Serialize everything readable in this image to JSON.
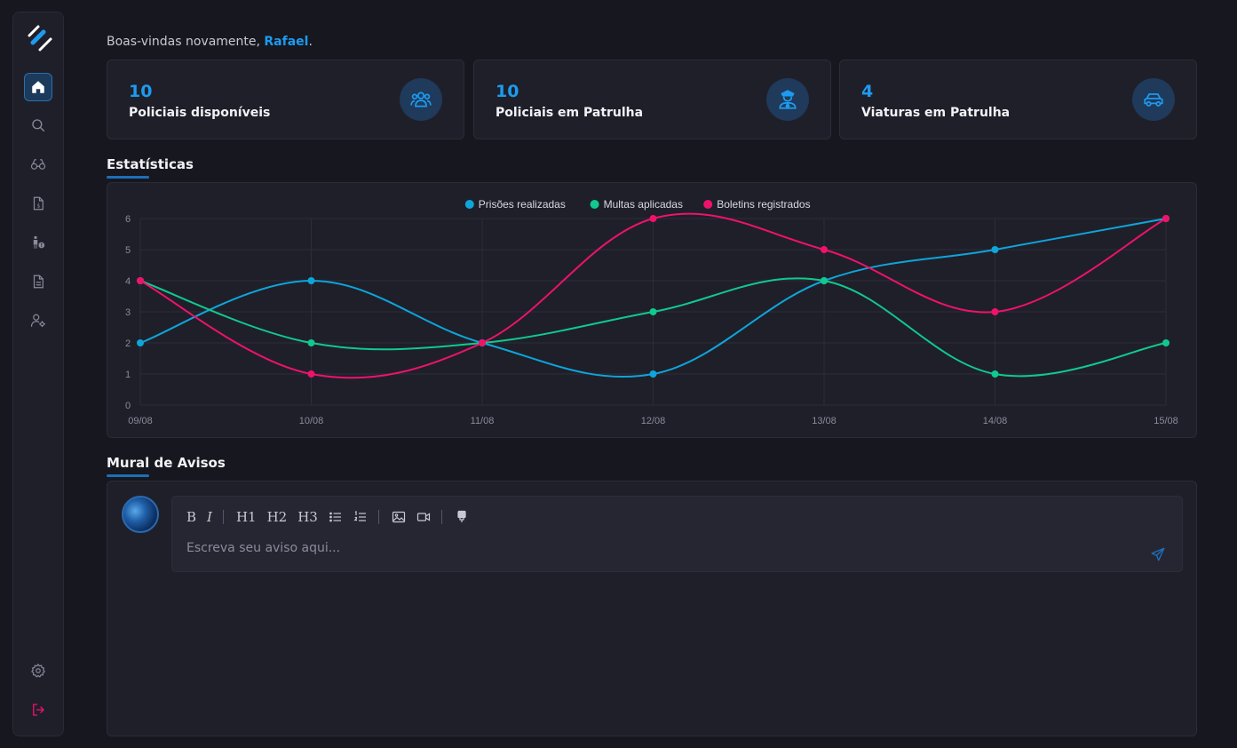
{
  "welcome": {
    "prefix": "Boas-vindas novamente, ",
    "name": "Rafael",
    "suffix": "."
  },
  "cards": [
    {
      "value": "10",
      "label": "Policiais disponíveis",
      "icon": "users-icon"
    },
    {
      "value": "10",
      "label": "Policiais em Patrulha",
      "icon": "police-officer-icon"
    },
    {
      "value": "4",
      "label": "Viaturas em Patrulha",
      "icon": "car-icon"
    }
  ],
  "sidebar": {
    "items": [
      {
        "name": "home",
        "icon": "home-icon",
        "active": true
      },
      {
        "name": "search",
        "icon": "search-icon"
      },
      {
        "name": "binoculars",
        "icon": "binoculars-icon"
      },
      {
        "name": "fines",
        "icon": "money-document-icon"
      },
      {
        "name": "wanted",
        "icon": "person-alert-icon"
      },
      {
        "name": "reports",
        "icon": "document-icon"
      },
      {
        "name": "user-settings",
        "icon": "user-gear-icon"
      }
    ],
    "bottom": [
      {
        "name": "settings",
        "icon": "gear-icon"
      },
      {
        "name": "logout",
        "icon": "logout-icon"
      }
    ]
  },
  "sections": {
    "stats_title": "Estatísticas",
    "mural_title": "Mural de Avisos"
  },
  "editor": {
    "placeholder": "Escreva seu aviso aqui...",
    "toolbar": [
      "B",
      "I",
      "H1",
      "H2",
      "H3"
    ]
  },
  "colors": {
    "accent": "#1d9bf0",
    "series1": "#0ea5d9",
    "series2": "#10c98f",
    "series3": "#f0126a",
    "logout": "#f0126a"
  },
  "chart_data": {
    "type": "line",
    "x": [
      "09/08",
      "10/08",
      "11/08",
      "12/08",
      "13/08",
      "14/08",
      "15/08"
    ],
    "series": [
      {
        "name": "Prisões realizadas",
        "values": [
          2,
          4,
          2,
          1,
          4,
          5,
          6
        ],
        "color": "#0ea5d9"
      },
      {
        "name": "Multas aplicadas",
        "values": [
          4,
          2,
          2,
          3,
          4,
          1,
          2
        ],
        "color": "#10c98f"
      },
      {
        "name": "Boletins registrados",
        "values": [
          4,
          1,
          2,
          6,
          5,
          3,
          6
        ],
        "color": "#f0126a"
      }
    ],
    "ylim": [
      0,
      6
    ],
    "yticks": [
      "0",
      "1",
      "2",
      "3",
      "4",
      "5",
      "6"
    ],
    "grid": true,
    "legend": "top-center"
  }
}
